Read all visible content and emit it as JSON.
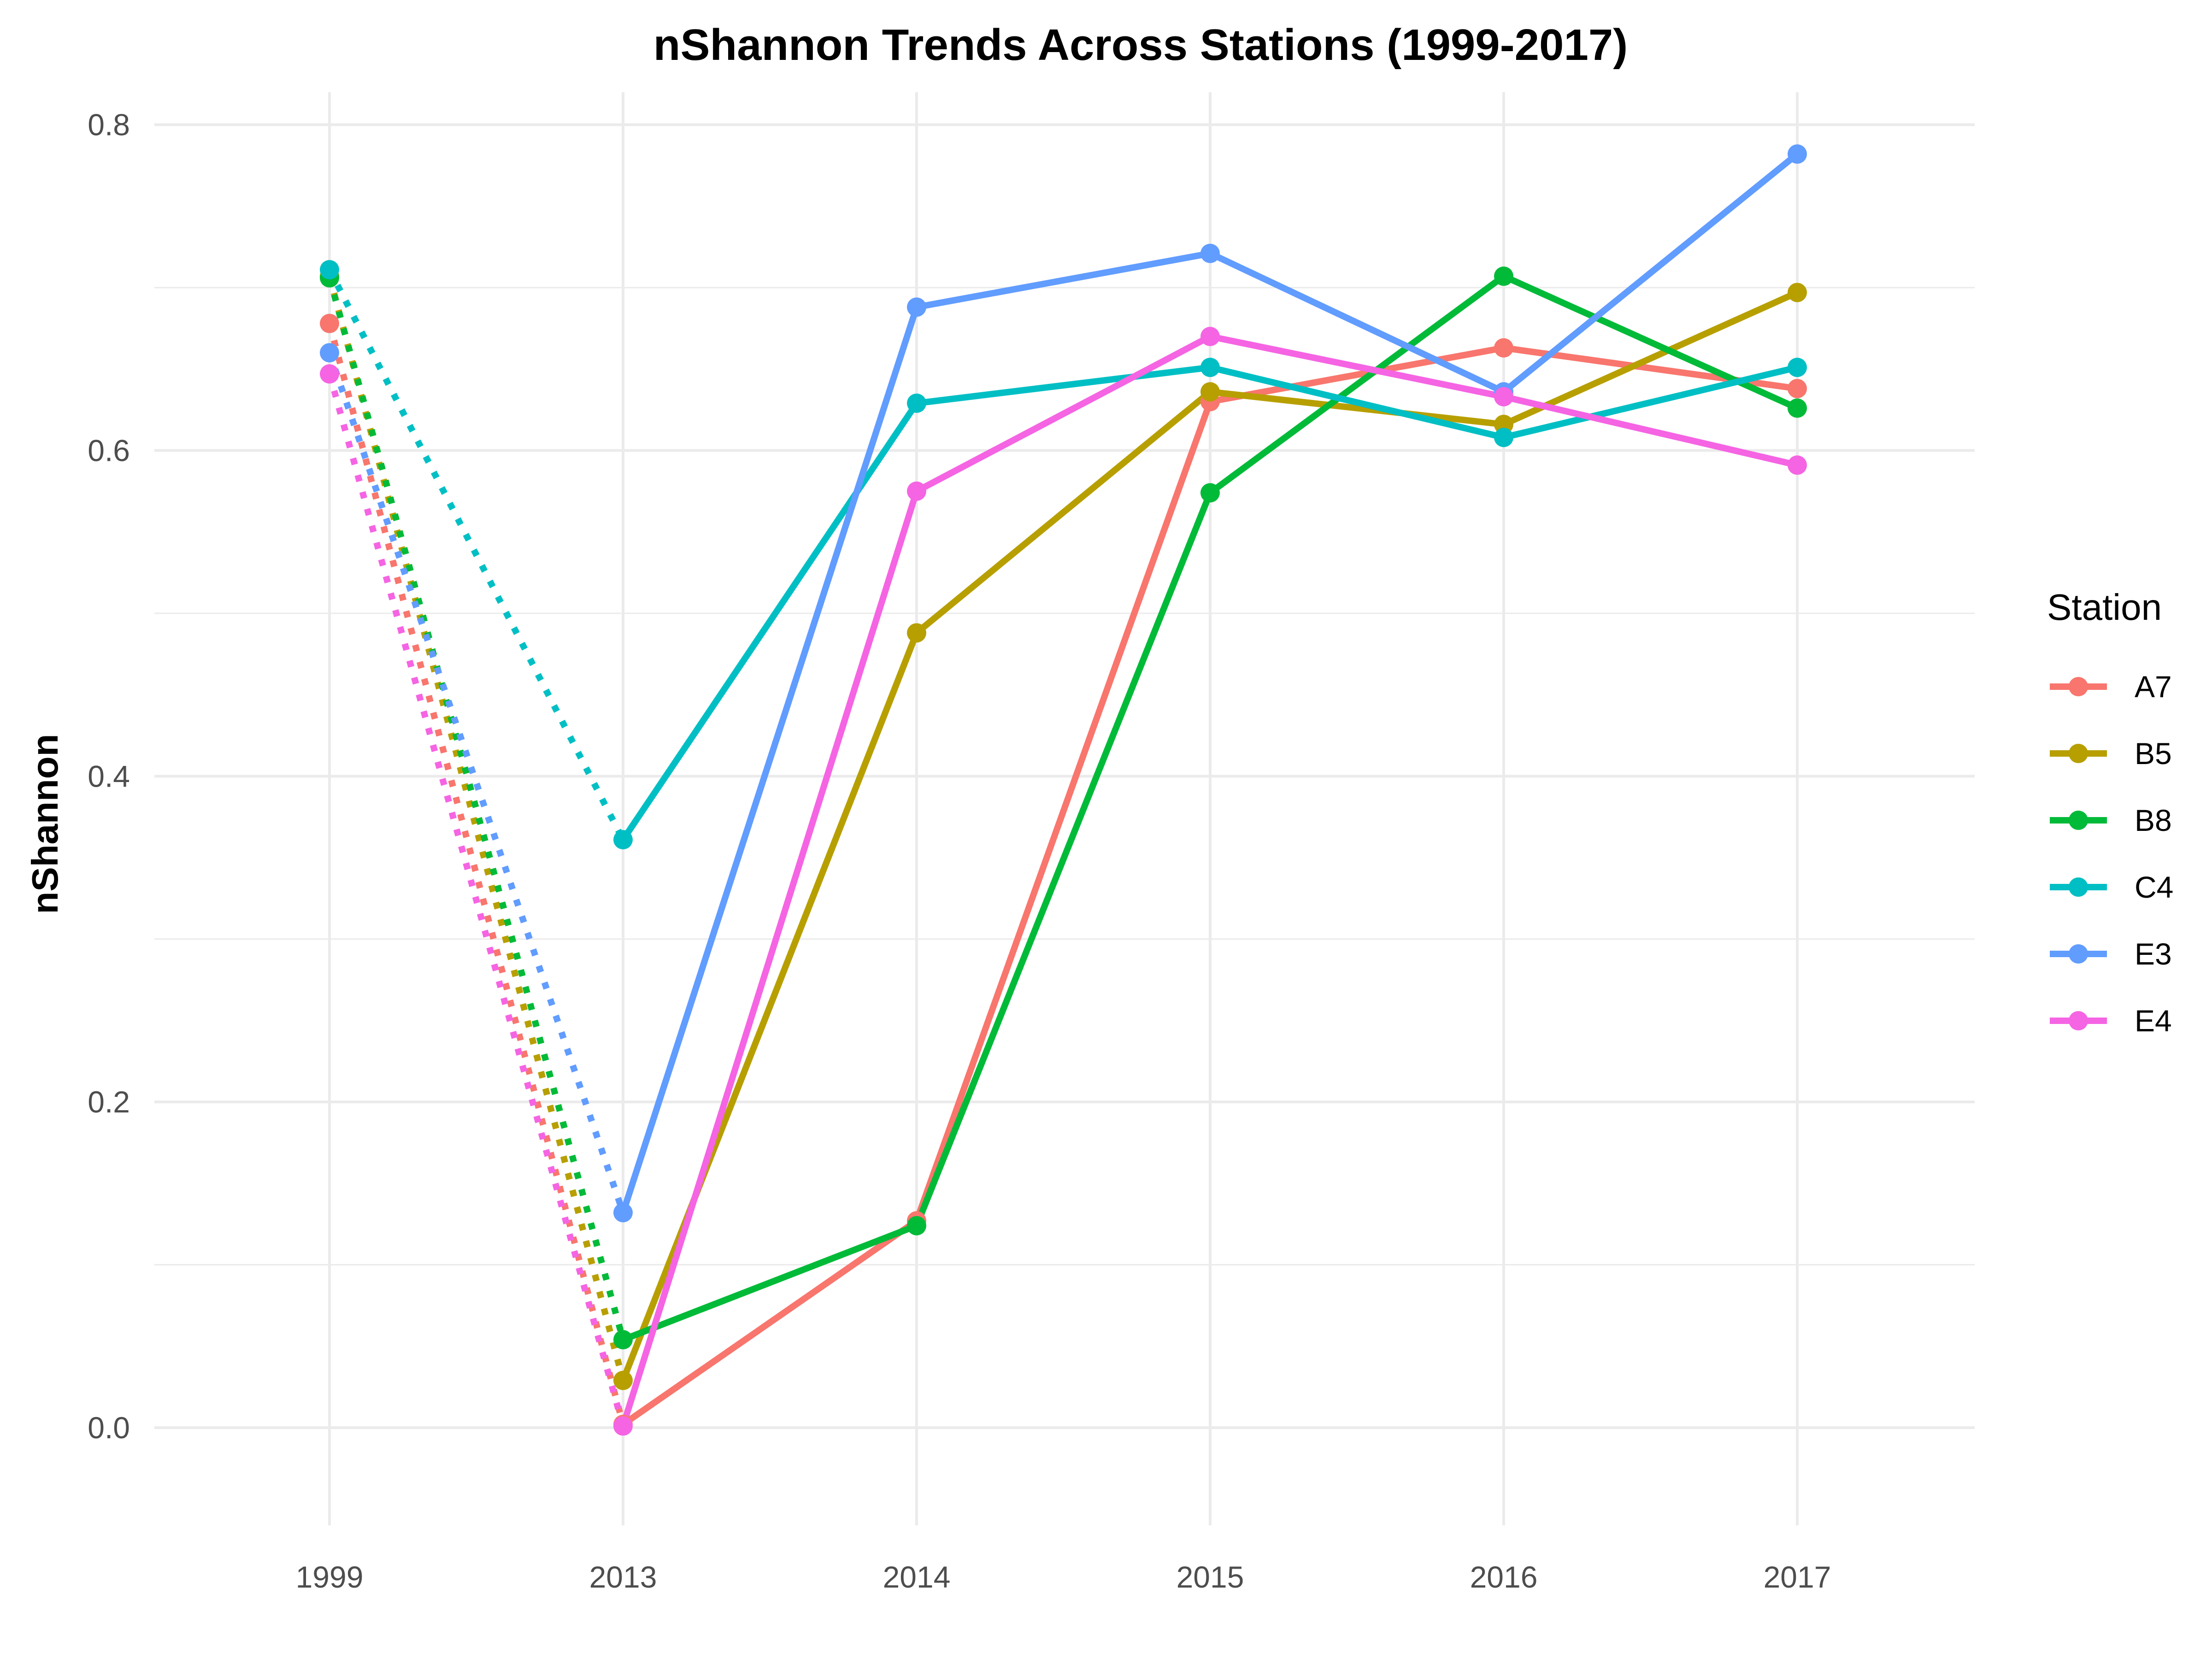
{
  "chart_data": {
    "type": "line",
    "title": "nShannon Trends Across Stations (1999-2017)",
    "xlabel": "",
    "ylabel": "nShannon",
    "categories": [
      "1999",
      "2013",
      "2014",
      "2015",
      "2016",
      "2017"
    ],
    "ylim": [
      -0.06,
      0.82
    ],
    "yticks": [
      0.0,
      0.2,
      0.4,
      0.6,
      0.8
    ],
    "ytick_labels": [
      "0.0",
      "0.2",
      "0.4",
      "0.6",
      "0.8"
    ],
    "grid": true,
    "legend": {
      "title": "Station",
      "placement": "right"
    },
    "line_styles": {
      "1999-2013": "dotted",
      "2013-2017": "solid"
    },
    "series": [
      {
        "name": "A7",
        "color": "#F8766D",
        "values": [
          0.678,
          0.002,
          0.127,
          0.63,
          0.663,
          0.638
        ]
      },
      {
        "name": "B5",
        "color": "#B79F00",
        "values": [
          0.707,
          0.029,
          0.488,
          0.636,
          0.616,
          0.697
        ]
      },
      {
        "name": "B8",
        "color": "#00BA38",
        "values": [
          0.706,
          0.054,
          0.124,
          0.574,
          0.707,
          0.626
        ]
      },
      {
        "name": "C4",
        "color": "#00BFC4",
        "values": [
          0.711,
          0.361,
          0.629,
          0.651,
          0.608,
          0.651
        ]
      },
      {
        "name": "E3",
        "color": "#619CFF",
        "values": [
          0.66,
          0.132,
          0.688,
          0.721,
          0.636,
          0.782
        ]
      },
      {
        "name": "E4",
        "color": "#F564E3",
        "values": [
          0.647,
          0.001,
          0.575,
          0.67,
          0.633,
          0.591
        ]
      }
    ]
  }
}
